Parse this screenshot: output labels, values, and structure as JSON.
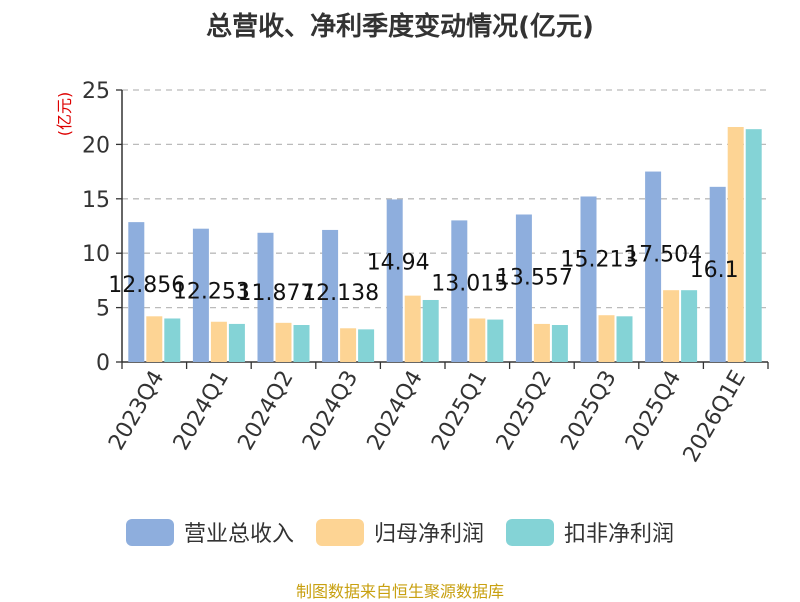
{
  "chart_data": {
    "type": "bar",
    "title": "总营收、净利季度变动情况(亿元)",
    "ylabel": "(亿元)",
    "xlabel": "",
    "ylim": [
      0,
      25
    ],
    "yticks": [
      0,
      5,
      10,
      15,
      20,
      25
    ],
    "grid": true,
    "legend_position": "bottom",
    "categories": [
      "2023Q4",
      "2024Q1",
      "2024Q2",
      "2024Q3",
      "2024Q4",
      "2025Q1",
      "2025Q2",
      "2025Q3",
      "2025Q4",
      "2026Q1E"
    ],
    "series": [
      {
        "name": "营业总收入",
        "color": "#8eaedd",
        "values": [
          12.856,
          12.253,
          11.877,
          12.138,
          14.94,
          13.015,
          13.557,
          15.213,
          17.504,
          16.1
        ],
        "data_labels": [
          "12.856",
          "12.253",
          "11.877",
          "12.138",
          "14.94",
          "13.015",
          "13.557",
          "15.213",
          "17.504",
          "16.1"
        ]
      },
      {
        "name": "归母净利润",
        "color": "#fdd494",
        "values": [
          4.2,
          3.7,
          3.6,
          3.1,
          6.1,
          4.0,
          3.5,
          4.3,
          6.6,
          21.6
        ]
      },
      {
        "name": "扣非净利润",
        "color": "#84d3d6",
        "values": [
          4.0,
          3.5,
          3.4,
          3.0,
          5.7,
          3.9,
          3.4,
          4.2,
          6.6,
          21.4
        ]
      }
    ]
  },
  "source": "制图数据来自恒生聚源数据库"
}
